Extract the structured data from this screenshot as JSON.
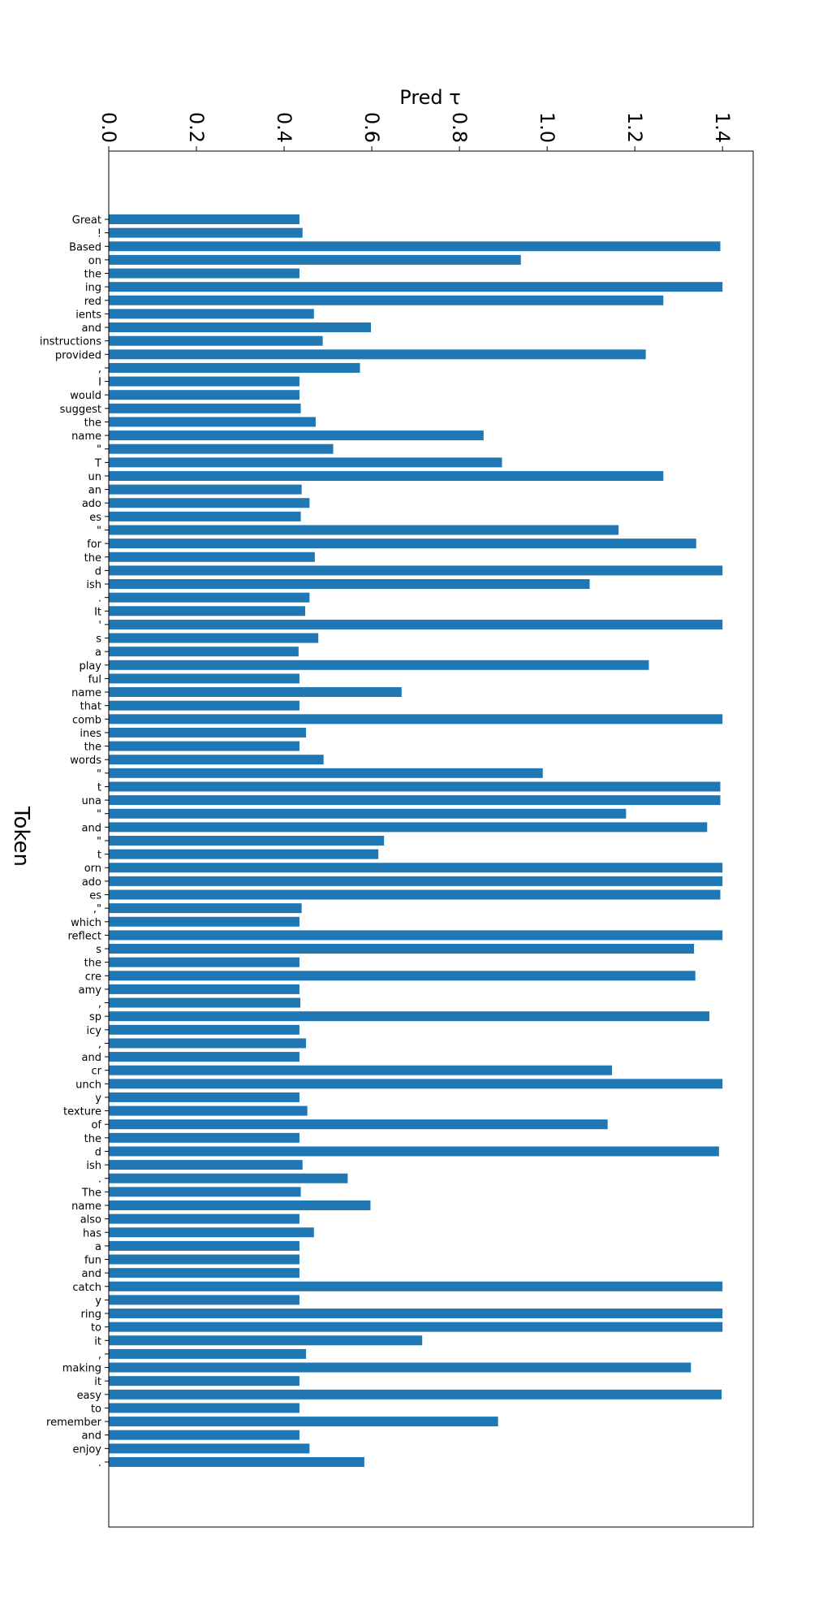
{
  "chart_data": {
    "type": "bar",
    "orientation": "horizontal",
    "title": "",
    "xlabel": "Pred τ",
    "ylabel": "Token",
    "xlim": [
      0,
      1.47
    ],
    "xticks": [
      0.0,
      0.2,
      0.4,
      0.6,
      0.8,
      1.0,
      1.2,
      1.4
    ],
    "xtick_labels": [
      "0.0",
      "0.2",
      "0.4",
      "0.6",
      "0.8",
      "1.0",
      "1.2",
      "1.4"
    ],
    "grid": false,
    "legend": "none",
    "bar_color": "#1f77b4",
    "categories": [
      "Great",
      "!",
      "Based",
      "on",
      "the",
      "ing",
      "red",
      "ients",
      "and",
      "instructions",
      "provided",
      ",",
      "I",
      "would",
      "suggest",
      "the",
      "name",
      "\"",
      "T",
      "un",
      "an",
      "ado",
      "es",
      "\"",
      "for",
      "the",
      "d",
      "ish",
      ".",
      "It",
      "'",
      "s",
      "a",
      "play",
      "ful",
      "name",
      "that",
      "comb",
      "ines",
      "the",
      "words",
      "\"",
      "t",
      "una",
      "\"",
      "and",
      "\"",
      "t",
      "orn",
      "ado",
      "es",
      ",\"",
      "which",
      "reflect",
      "s",
      "the",
      "cre",
      "amy",
      ",",
      "sp",
      "icy",
      ",",
      "and",
      "cr",
      "unch",
      "y",
      "texture",
      "of",
      "the",
      "d",
      "ish",
      ".",
      "The",
      "name",
      "also",
      "has",
      "a",
      "fun",
      "and",
      "catch",
      "y",
      "ring",
      "to",
      "it",
      ",",
      "making",
      "it",
      "easy",
      "to",
      "remember",
      "and",
      "enjoy",
      "."
    ],
    "values": [
      0.435,
      0.442,
      1.395,
      0.94,
      0.435,
      1.4,
      1.265,
      0.468,
      0.598,
      0.488,
      1.225,
      0.573,
      0.435,
      0.435,
      0.438,
      0.472,
      0.855,
      0.512,
      0.897,
      1.265,
      0.44,
      0.458,
      0.438,
      1.163,
      1.34,
      0.47,
      1.4,
      1.097,
      0.458,
      0.448,
      1.4,
      0.478,
      0.433,
      1.232,
      0.435,
      0.668,
      0.435,
      1.4,
      0.45,
      0.435,
      0.49,
      0.99,
      1.395,
      1.395,
      1.18,
      1.365,
      0.628,
      0.615,
      1.4,
      1.4,
      1.395,
      0.44,
      0.435,
      1.4,
      1.335,
      0.435,
      1.338,
      0.435,
      0.437,
      1.37,
      0.435,
      0.45,
      0.435,
      1.148,
      1.4,
      0.435,
      0.453,
      1.138,
      0.435,
      1.392,
      0.442,
      0.545,
      0.438,
      0.597,
      0.435,
      0.468,
      0.435,
      0.435,
      0.435,
      1.4,
      0.435,
      1.4,
      1.4,
      0.715,
      0.45,
      1.328,
      0.435,
      1.398,
      0.435,
      0.888,
      0.435,
      0.458,
      0.583
    ]
  }
}
